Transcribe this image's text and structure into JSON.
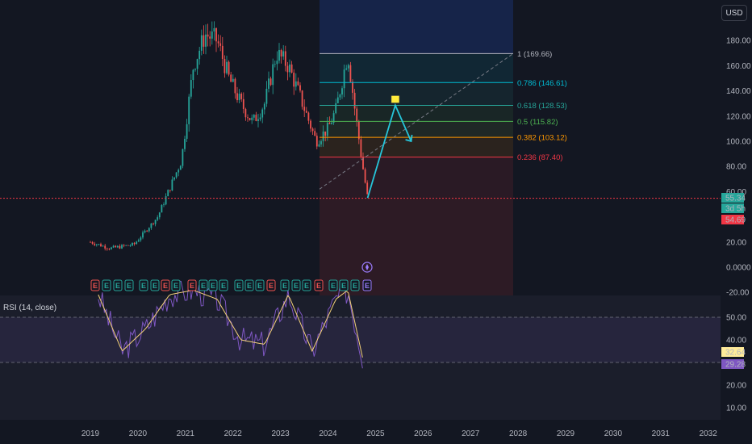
{
  "header": {
    "currency": "USD"
  },
  "price_axis_ticks": [
    "180.00",
    "160.00",
    "140.00",
    "120.00",
    "100.00",
    "80.00",
    "60.00",
    "20.00",
    "0.0000",
    "-20.00"
  ],
  "rsi_axis_ticks": [
    "50.00",
    "40.00",
    "20.00",
    "10.00"
  ],
  "time_axis_ticks": [
    "2019",
    "2020",
    "2021",
    "2022",
    "2023",
    "2024",
    "2025",
    "2026",
    "2027",
    "2028",
    "2029",
    "2030",
    "2031",
    "2032"
  ],
  "price_badges": [
    {
      "label": "55.34",
      "color": "#26a69a"
    },
    {
      "label": "3d 5h",
      "color": "#26a69a"
    },
    {
      "label": "54.69",
      "color": "#f23645"
    }
  ],
  "rsi_badges": [
    {
      "label": "32.64",
      "color": "#ffeb99",
      "text_color": "#131722"
    },
    {
      "label": "29.28",
      "color": "#7e57c2",
      "text_color": "#ffffff"
    }
  ],
  "rsi": {
    "label": "RSI (14, close)"
  },
  "event_marker": "E",
  "chart_data": {
    "type": "candlestick",
    "title": "",
    "currency": "USD",
    "x_range": [
      "2019",
      "2032"
    ],
    "y_range": [
      -20,
      190
    ],
    "last_price": 55.34,
    "countdown": "3d 5h",
    "reference_price": 54.69,
    "fibonacci_levels": [
      {
        "ratio": "1",
        "price": 169.66,
        "label": "1 (169.66)",
        "color": "#b2b5be"
      },
      {
        "ratio": "0.786",
        "price": 146.61,
        "label": "0.786 (146.61)",
        "color": "#00bcd4"
      },
      {
        "ratio": "0.618",
        "price": 128.53,
        "label": "0.618 (128.53)",
        "color": "#26a69a"
      },
      {
        "ratio": "0.5",
        "price": 115.82,
        "label": "0.5 (115.82)",
        "color": "#4caf50"
      },
      {
        "ratio": "0.382",
        "price": 103.12,
        "label": "0.382 (103.12)",
        "color": "#ff9800"
      },
      {
        "ratio": "0.236",
        "price": 87.4,
        "label": "0.236 (87.40)",
        "color": "#f23645"
      }
    ],
    "approx_price_path": [
      [
        "2019-01",
        20
      ],
      [
        "2019-06",
        15
      ],
      [
        "2019-12",
        18
      ],
      [
        "2020-06",
        40
      ],
      [
        "2020-12",
        85
      ],
      [
        "2021-03",
        160
      ],
      [
        "2021-06",
        185
      ],
      [
        "2021-09",
        180
      ],
      [
        "2021-12",
        150
      ],
      [
        "2022-03",
        130
      ],
      [
        "2022-06",
        115
      ],
      [
        "2022-09",
        130
      ],
      [
        "2022-12",
        170
      ],
      [
        "2023-03",
        160
      ],
      [
        "2023-06",
        135
      ],
      [
        "2023-10",
        100
      ],
      [
        "2024-01",
        110
      ],
      [
        "2024-03",
        125
      ],
      [
        "2024-06",
        170
      ],
      [
        "2024-08",
        120
      ],
      [
        "2024-10",
        75
      ],
      [
        "2024-11",
        55
      ]
    ],
    "projection_path": [
      [
        "2024-11",
        55
      ],
      [
        "2025-06",
        128.53
      ],
      [
        "2025-10",
        100
      ]
    ],
    "rsi_series": {
      "name": "RSI (14, close)",
      "y_range": [
        0,
        65
      ],
      "approx_values": [
        [
          "2019-03",
          60
        ],
        [
          "2019-09",
          35
        ],
        [
          "2020-03",
          45
        ],
        [
          "2020-09",
          60
        ],
        [
          "2021-03",
          62
        ],
        [
          "2021-09",
          58
        ],
        [
          "2022-03",
          40
        ],
        [
          "2022-09",
          38
        ],
        [
          "2023-03",
          60
        ],
        [
          "2023-09",
          35
        ],
        [
          "2024-03",
          58
        ],
        [
          "2024-06",
          62
        ],
        [
          "2024-10",
          30
        ]
      ],
      "last_rsi": 29.28,
      "last_ma": 32.64
    }
  }
}
